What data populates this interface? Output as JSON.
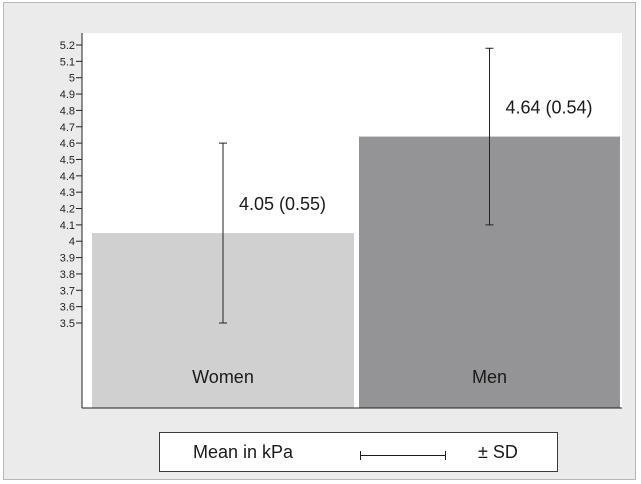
{
  "chart_data": {
    "type": "bar",
    "categories": [
      "Women",
      "Men"
    ],
    "values": [
      4.05,
      4.64
    ],
    "sd": [
      0.55,
      0.54
    ],
    "data_labels": [
      "4.05 (0.55)",
      "4.64 (0.54)"
    ],
    "bar_colors": [
      "#d0d0d0",
      "#949496"
    ],
    "yticks": [
      "3.5",
      "3.6",
      "3.7",
      "3.8",
      "3.9",
      "4",
      "4.1",
      "4.2",
      "4.3",
      "4.4",
      "4.5",
      "4.6",
      "4.7",
      "4.8",
      "4.9",
      "5",
      "5.1",
      "5.2"
    ],
    "ylim": [
      3.0,
      5.25
    ],
    "grid": false,
    "legend": {
      "position": "bottom",
      "mean_label": "Mean in kPa",
      "sd_label": "± SD"
    }
  }
}
